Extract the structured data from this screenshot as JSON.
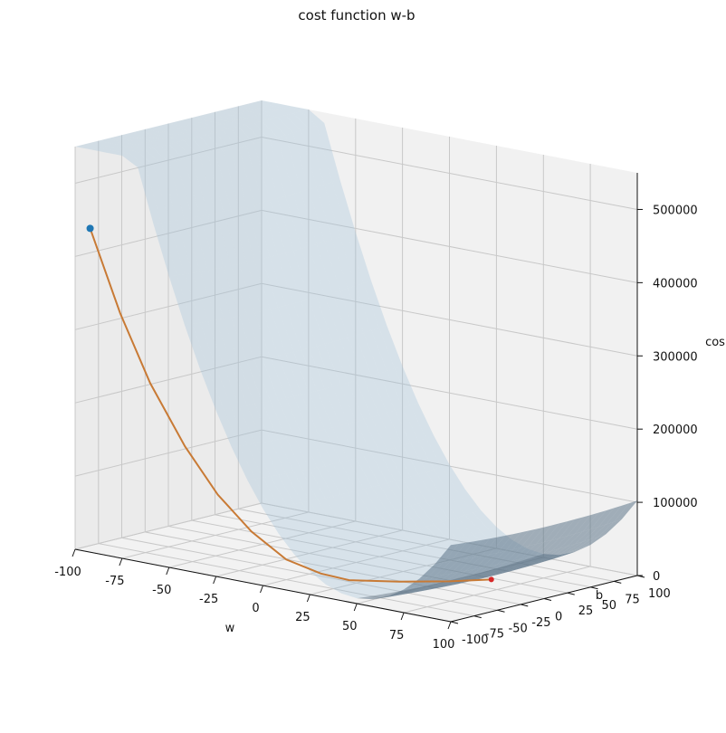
{
  "chart_data": {
    "type": "surface3d",
    "title": "cost function w-b",
    "xlabel": "w",
    "ylabel": "b",
    "zlabel": "cos",
    "x_ticks": [
      -100,
      -75,
      -50,
      -25,
      0,
      25,
      50,
      75,
      100
    ],
    "y_ticks": [
      -100,
      -75,
      -50,
      -25,
      0,
      25,
      50,
      75,
      100
    ],
    "z_ticks": [
      0,
      100000,
      200000,
      300000,
      400000,
      500000
    ],
    "xlim": [
      -100,
      100
    ],
    "ylim": [
      -100,
      100
    ],
    "zlim": [
      0,
      550000
    ],
    "grid": true,
    "surface": {
      "name": "cost surface",
      "color": "#9fc1da"
    },
    "path": {
      "name": "gradient descent path",
      "color": "#c87a35",
      "points": [
        {
          "w": -94,
          "b": -96,
          "cost": 440000
        },
        {
          "w": -80,
          "b": -92,
          "cost": 330000
        },
        {
          "w": -66,
          "b": -88,
          "cost": 240000
        },
        {
          "w": -50,
          "b": -83,
          "cost": 160000
        },
        {
          "w": -35,
          "b": -78,
          "cost": 100000
        },
        {
          "w": -20,
          "b": -72,
          "cost": 55000
        },
        {
          "w": -5,
          "b": -65,
          "cost": 22000
        },
        {
          "w": 10,
          "b": -58,
          "cost": 8000
        },
        {
          "w": 22,
          "b": -52,
          "cost": 3000
        },
        {
          "w": 38,
          "b": -30,
          "cost": 2000
        },
        {
          "w": 52,
          "b": -5,
          "cost": 1500
        },
        {
          "w": 62,
          "b": 20,
          "cost": 1000
        }
      ]
    },
    "start_point": {
      "w": -94,
      "b": -96,
      "cost": 440000,
      "color": "#1f77b4"
    },
    "end_point": {
      "w": 62,
      "b": 20,
      "cost": 1000,
      "color": "#d62728"
    }
  }
}
